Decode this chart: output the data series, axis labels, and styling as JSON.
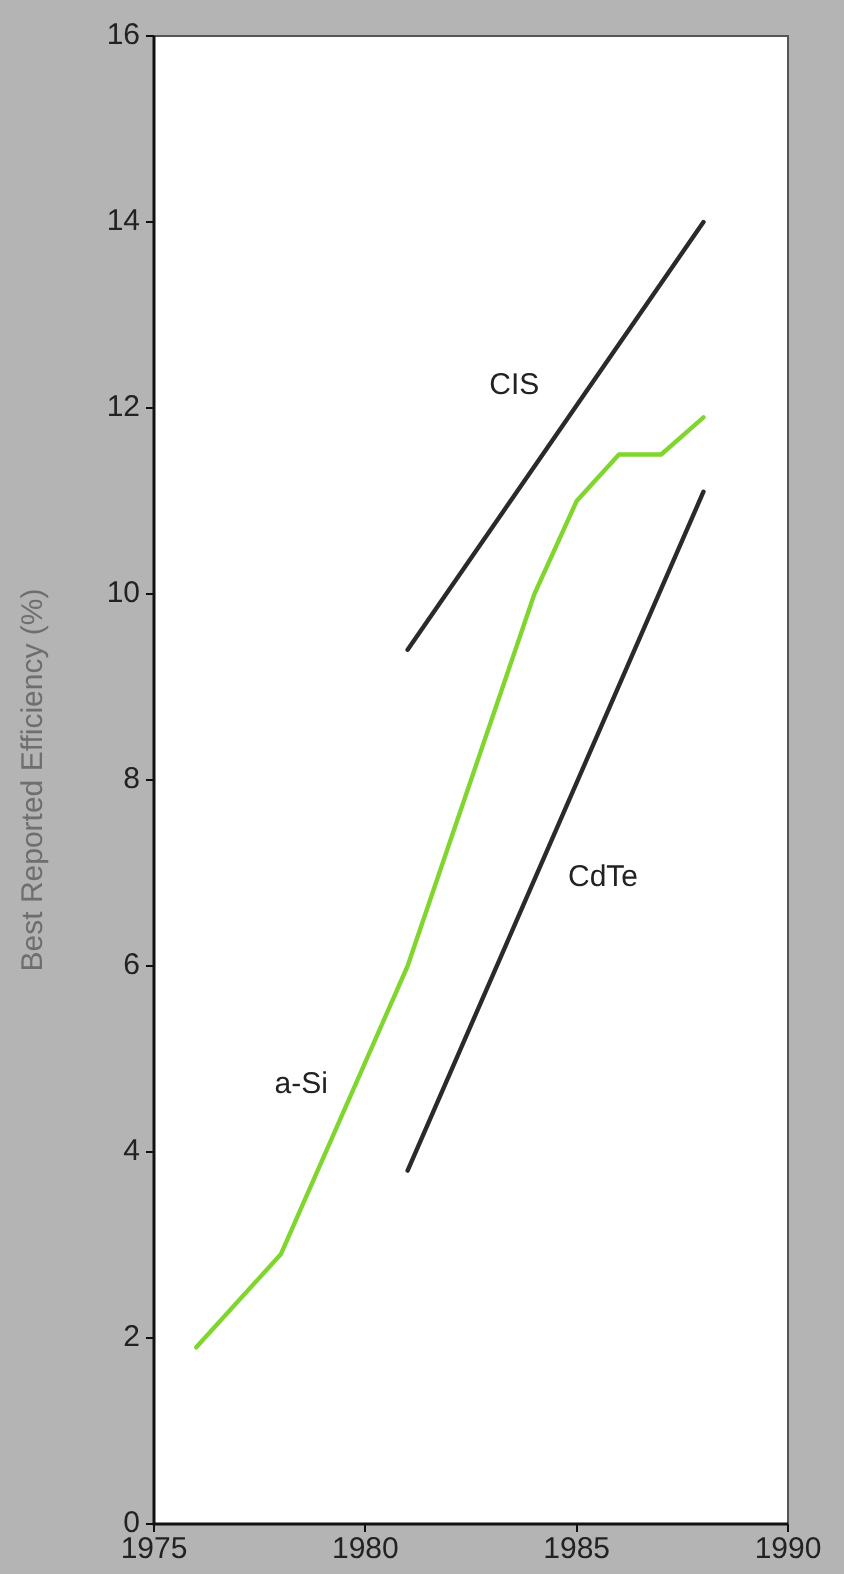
{
  "chart_data": {
    "type": "line",
    "ylabel": "Best Reported Efficiency (%)",
    "xlim": [
      1975,
      1990
    ],
    "xticks": [
      1975,
      1980,
      1985,
      1990
    ],
    "ylim": [
      0,
      16
    ],
    "yticks": [
      0,
      2,
      4,
      6,
      8,
      10,
      12,
      14,
      16
    ],
    "grid": false,
    "legend": false,
    "marker": "none",
    "line_style": "solid",
    "series": [
      {
        "name": "CIS",
        "color": "#2a2a2a",
        "x": [
          1981,
          1988
        ],
        "values": [
          9.4,
          14.0
        ]
      },
      {
        "name": "a-Si",
        "color": "#80d62e",
        "x": [
          1976,
          1978,
          1981,
          1984,
          1985,
          1986,
          1987,
          1988
        ],
        "values": [
          1.9,
          2.9,
          6.0,
          10.0,
          11.0,
          11.5,
          11.5,
          11.9
        ]
      },
      {
        "name": "CdTe",
        "color": "#2a2a2a",
        "x": [
          1981,
          1988
        ],
        "values": [
          3.8,
          11.1
        ]
      }
    ]
  }
}
